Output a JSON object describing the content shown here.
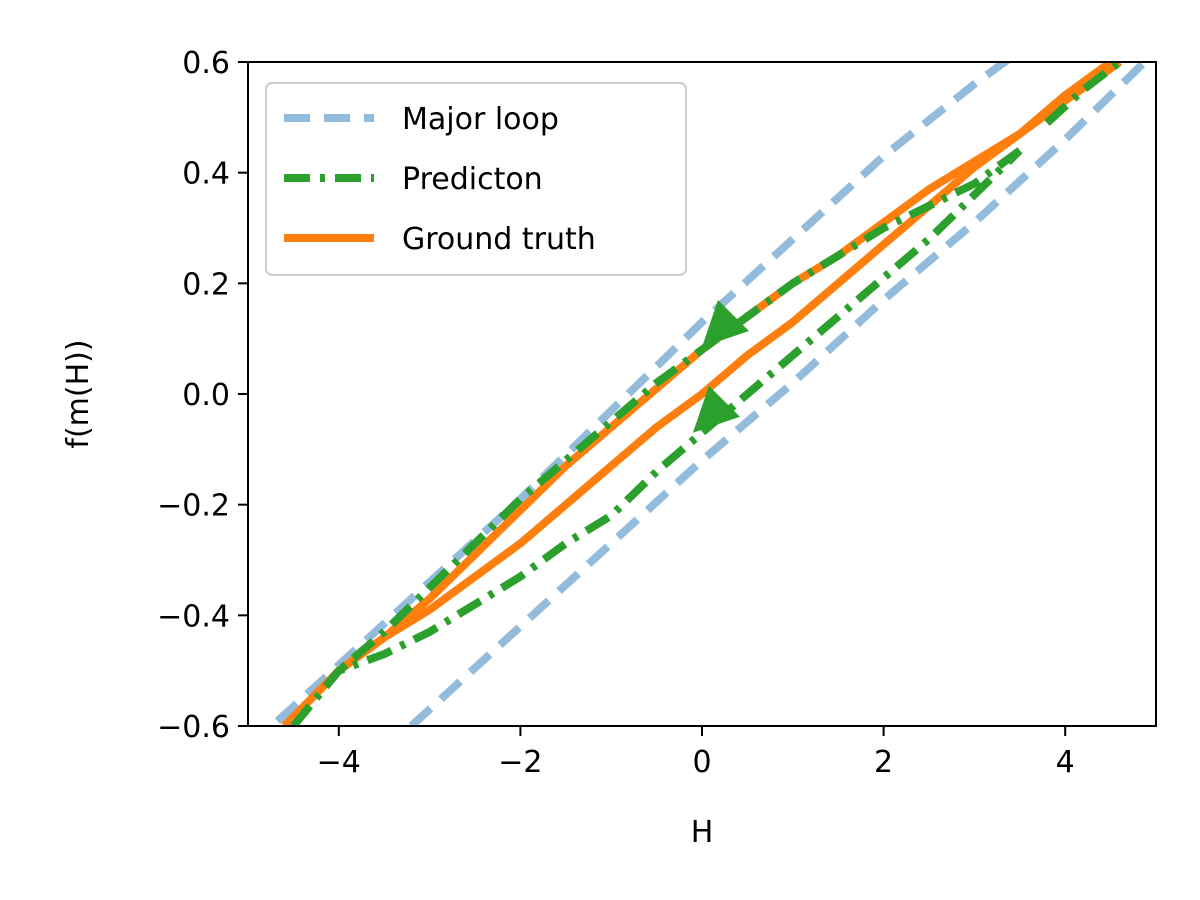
{
  "chart_data": {
    "type": "line",
    "xlabel": "H",
    "ylabel": "f(m(H))",
    "xlim": [
      -5,
      5
    ],
    "ylim": [
      -0.6,
      0.6
    ],
    "grid": false,
    "legend_position": "upper-left",
    "xticks": [
      -4,
      -2,
      0,
      2,
      4
    ],
    "xtick_labels": [
      "−4",
      "−2",
      "0",
      "2",
      "4"
    ],
    "yticks": [
      -0.6,
      -0.4,
      -0.2,
      0.0,
      0.2,
      0.4,
      0.6
    ],
    "ytick_labels": [
      "−0.6",
      "−0.4",
      "−0.2",
      "0.0",
      "0.2",
      "0.4",
      "0.6"
    ],
    "series": [
      {
        "name": "Major loop",
        "color": "#93bcdc",
        "style": "dashed",
        "segments": [
          {
            "x": [
              -5.0,
              -4.0,
              -3.0,
              -2.0,
              -1.0,
              0.0,
              1.0,
              2.0,
              3.0,
              4.0,
              5.0
            ],
            "y": [
              -0.64,
              -0.49,
              -0.34,
              -0.19,
              -0.03,
              0.13,
              0.28,
              0.43,
              0.56,
              0.68,
              0.78
            ]
          },
          {
            "x": [
              -3.2,
              -2.0,
              -1.0,
              0.0,
              1.0,
              2.0,
              3.0,
              4.0,
              5.0
            ],
            "y": [
              -0.6,
              -0.42,
              -0.27,
              -0.12,
              0.02,
              0.17,
              0.31,
              0.46,
              0.62
            ]
          }
        ]
      },
      {
        "name": "Ground truth",
        "color": "#ff7f0e",
        "style": "solid",
        "segments": [
          {
            "x": [
              -4.6,
              -4.3,
              -4.0,
              -3.5,
              -3.0,
              -2.5,
              -2.0,
              -1.5,
              -1.0,
              -0.5,
              0.0,
              0.5,
              1.0,
              1.5,
              2.0,
              2.5,
              3.0,
              3.5,
              4.0,
              4.5
            ],
            "y": [
              -0.6,
              -0.55,
              -0.5,
              -0.44,
              -0.39,
              -0.33,
              -0.27,
              -0.2,
              -0.13,
              -0.06,
              0.0,
              0.07,
              0.13,
              0.2,
              0.27,
              0.34,
              0.41,
              0.47,
              0.54,
              0.6
            ]
          },
          {
            "x": [
              4.6,
              4.0,
              3.5,
              3.0,
              2.5,
              2.0,
              1.5,
              1.0,
              0.5,
              0.0,
              -0.5,
              -1.0,
              -1.5,
              -2.0,
              -2.5,
              -3.0,
              -3.5,
              -4.0
            ],
            "y": [
              0.6,
              0.53,
              0.47,
              0.42,
              0.37,
              0.31,
              0.25,
              0.2,
              0.14,
              0.08,
              0.01,
              -0.06,
              -0.13,
              -0.21,
              -0.29,
              -0.37,
              -0.44,
              -0.5
            ]
          }
        ]
      },
      {
        "name": "Predicton",
        "color": "#2ca02c",
        "style": "dashdot",
        "segments": [
          {
            "x": [
              -4.5,
              -4.0,
              -3.5,
              -3.0,
              -2.5,
              -2.0,
              -1.5,
              -1.0,
              -0.5,
              0.0,
              0.5,
              1.0,
              1.5,
              2.0,
              2.5,
              3.0,
              3.5
            ],
            "y": [
              -0.6,
              -0.5,
              -0.47,
              -0.43,
              -0.38,
              -0.33,
              -0.27,
              -0.22,
              -0.14,
              -0.07,
              0.0,
              0.07,
              0.14,
              0.21,
              0.28,
              0.36,
              0.44
            ]
          },
          {
            "x": [
              3.5,
              3.0,
              2.5,
              2.0,
              1.5,
              1.0,
              0.5,
              0.0,
              -0.5,
              -1.0,
              -1.5,
              -2.0,
              -2.5,
              -3.0,
              -3.5,
              -4.0
            ],
            "y": [
              0.44,
              0.38,
              0.34,
              0.3,
              0.25,
              0.2,
              0.14,
              0.08,
              0.02,
              -0.05,
              -0.12,
              -0.19,
              -0.27,
              -0.35,
              -0.43,
              -0.5
            ]
          },
          {
            "x": [
              3.8,
              4.2,
              4.6
            ],
            "y": [
              0.49,
              0.55,
              0.6
            ]
          }
        ],
        "arrows": [
          {
            "x": 0.0,
            "y": 0.085,
            "direction": "down-left"
          },
          {
            "x": -0.1,
            "y": -0.07,
            "direction": "down-left"
          }
        ]
      }
    ]
  }
}
